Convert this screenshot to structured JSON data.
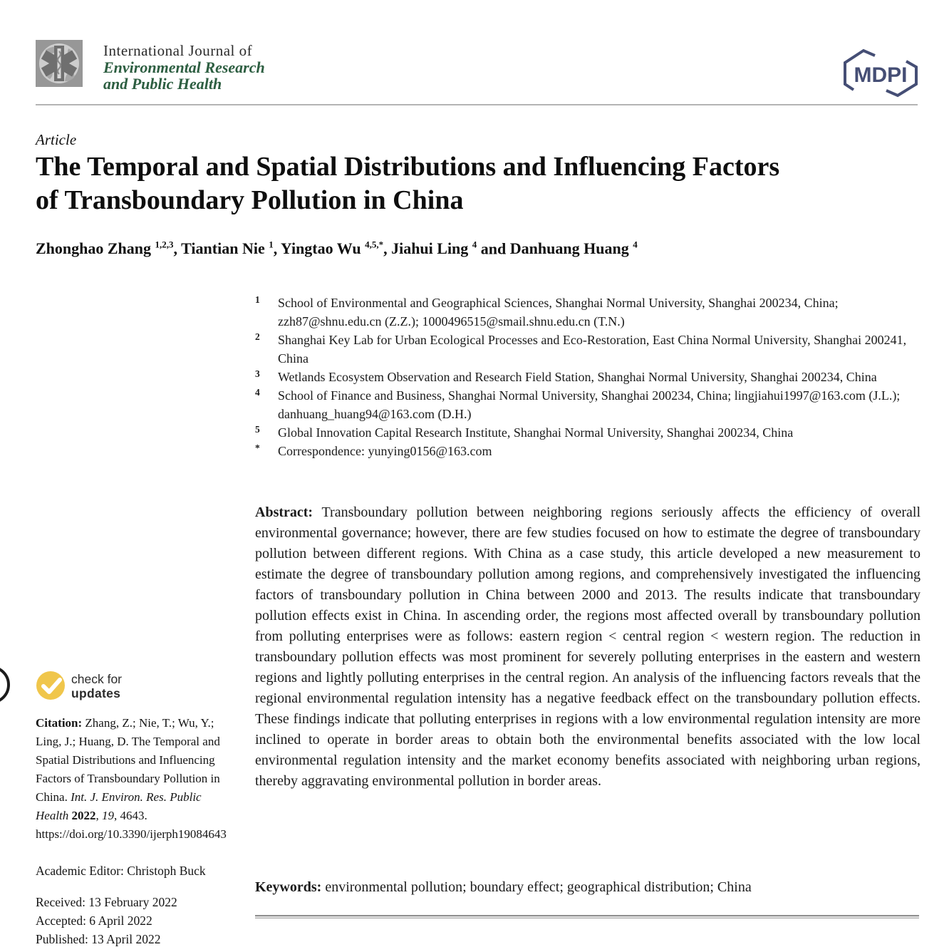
{
  "header": {
    "journal_line1": "International Journal of",
    "journal_line2": "Environmental Research",
    "journal_line3": "and Public Health",
    "mdpi_label": "MDPI"
  },
  "colors": {
    "journal_green": "#2d5e41",
    "mdpi_navy": "#454e75",
    "badge_yellow": "#f0c64b",
    "header_rule_gray": "#b4b4b4"
  },
  "icons": {
    "journal_logo": "globe-medical-star-icon",
    "badge_check": "check-icon"
  },
  "article": {
    "kind": "Article",
    "title_line1": "The Temporal and Spatial Distributions and Influencing Factors",
    "title_line2": "of Transboundary Pollution in China"
  },
  "authors": {
    "list": [
      {
        "name": "Zhonghao Zhang",
        "sup": "1,2,3",
        "sep": ", "
      },
      {
        "name": "Tiantian Nie",
        "sup": "1",
        "sep": ", "
      },
      {
        "name": "Yingtao Wu",
        "sup": "4,5,*",
        "sep": ", "
      },
      {
        "name": "Jiahui Ling",
        "sup": "4",
        "sep": " and "
      },
      {
        "name": "Danhuang Huang",
        "sup": "4",
        "sep": ""
      }
    ]
  },
  "affiliations": [
    {
      "marker": "1",
      "text": "School of Environmental and Geographical Sciences, Shanghai Normal University, Shanghai 200234, China; zzh87@shnu.edu.cn (Z.Z.); 1000496515@smail.shnu.edu.cn (T.N.)"
    },
    {
      "marker": "2",
      "text": "Shanghai Key Lab for Urban Ecological Processes and Eco-Restoration, East China Normal University, Shanghai 200241, China"
    },
    {
      "marker": "3",
      "text": "Wetlands Ecosystem Observation and Research Field Station, Shanghai Normal University, Shanghai 200234, China"
    },
    {
      "marker": "4",
      "text": "School of Finance and Business, Shanghai Normal University, Shanghai 200234, China; lingjiahui1997@163.com (J.L.); danhuang_huang94@163.com (D.H.)"
    },
    {
      "marker": "5",
      "text": "Global Innovation Capital Research Institute, Shanghai Normal University, Shanghai 200234, China"
    },
    {
      "marker": "*",
      "text": "Correspondence: yunying0156@163.com"
    }
  ],
  "abstract": {
    "label": "Abstract: ",
    "text": "Transboundary pollution between neighboring regions seriously affects the efficiency of overall environmental governance; however, there are few studies focused on how to estimate the degree of transboundary pollution between different regions. With China as a case study, this article developed a new measurement to estimate the degree of transboundary pollution among regions, and comprehensively investigated the influencing factors of transboundary pollution in China between 2000 and 2013. The results indicate that transboundary pollution effects exist in China. In ascending order, the regions most affected overall by transboundary pollution from polluting enterprises were as follows: eastern region < central region < western region. The reduction in transboundary pollution effects was most prominent for severely polluting enterprises in the eastern and western regions and lightly polluting enterprises in the central region. An analysis of the influencing factors reveals that the regional environmental regulation intensity has a negative feedback effect on the transboundary pollution effects. These findings indicate that polluting enterprises in regions with a low environmental regulation intensity are more inclined to operate in border areas to obtain both the environmental benefits associated with the low local environmental regulation intensity and the market economy benefits associated with neighboring urban regions, thereby aggravating environmental pollution in border areas."
  },
  "keywords": {
    "label": "Keywords: ",
    "text": "environmental pollution; boundary effect; geographical distribution; China"
  },
  "sidebar": {
    "badge": {
      "line1": "check for",
      "line2": "updates"
    },
    "citation": {
      "label": "Citation: ",
      "authors": "Zhang, Z.; Nie, T.; Wu, Y.; Ling, J.; Huang, D. ",
      "title": "The Temporal and Spatial Distributions and Influencing Factors of Transboundary Pollution in China. ",
      "journal_italic": "Int. J. Environ. Res. Public Health ",
      "year_bold": "2022",
      "comma1": ", ",
      "volume_italic": "19",
      "comma2": ", 4643. ",
      "doi": "https://doi.org/10.3390/ijerph19084643"
    },
    "editor": "Academic Editor: Christoph Buck",
    "received": "Received: 13 February 2022",
    "accepted": "Accepted: 6 April 2022",
    "published": "Published: 13 April 2022"
  }
}
